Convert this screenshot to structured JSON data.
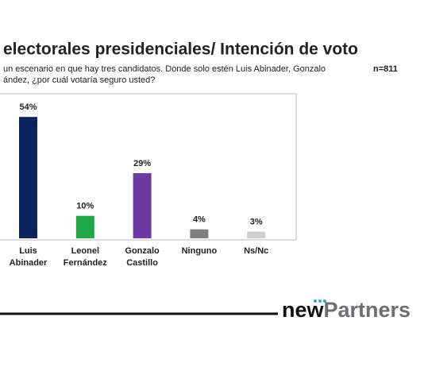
{
  "chart_data": {
    "type": "bar",
    "title": "electorales presidenciales/ Intención de voto",
    "subtitle": [
      "un escenario en que hay tres candidatos. Donde solo estén Luis Abinader, Gonzalo",
      "ández, ¿por cuál votaría seguro usted?"
    ],
    "sample": "n=811",
    "categories": [
      "Luis Abinader",
      "Leonel Fernández",
      "Gonzalo Castillo",
      "Ninguno",
      "Ns/Nc"
    ],
    "values": [
      54,
      10,
      29,
      4,
      3
    ],
    "value_labels": [
      "54%",
      "10%",
      "29%",
      "4%",
      "3%"
    ],
    "colors": [
      "#0c2460",
      "#1fa84a",
      "#6b3aa3",
      "#7f7f7f",
      "#cfcfcf"
    ],
    "logo": {
      "first": "new",
      "second": "Partners"
    }
  }
}
